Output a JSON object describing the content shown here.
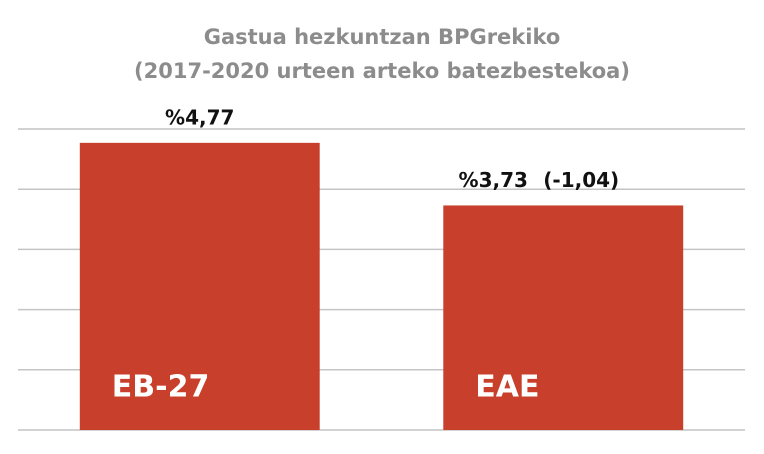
{
  "chart_data": {
    "type": "bar",
    "title": [
      "Gastua hezkuntzan BPGrekiko",
      "(2017-2020 urteen arteko batezbestekoa)"
    ],
    "categories": [
      "EB-27",
      "EAE"
    ],
    "values": [
      4.77,
      3.73
    ],
    "value_labels": [
      "%4,77",
      "%3,73"
    ],
    "annotations": [
      "(-1,04)"
    ],
    "color": "#c8402c",
    "ylim": [
      0,
      5
    ],
    "yticks": [
      0,
      1,
      2,
      3,
      4,
      5
    ],
    "grid": true
  }
}
